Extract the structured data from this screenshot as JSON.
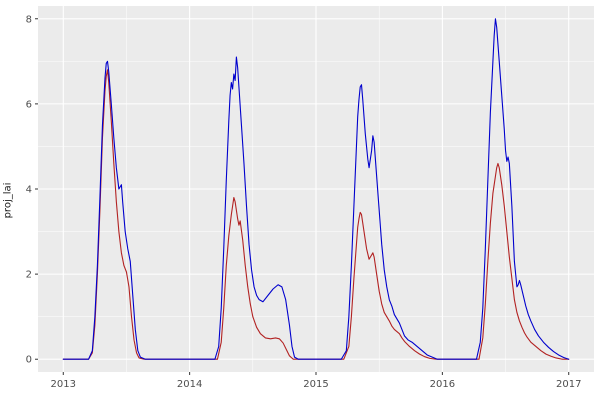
{
  "figure": {
    "background": "#FFFFFF",
    "panel_background": "#EBEBEB",
    "grid_major_color": "#FFFFFF",
    "grid_minor_color": "#FFFFFF",
    "axis_text_color": "#4D4D4D",
    "axis_title_color": "#1A1A1A",
    "tick_mark_color": "#333333"
  },
  "chart_data": {
    "type": "line",
    "title": "",
    "xlabel": "",
    "ylabel": "proj_lai",
    "grid": true,
    "legend": "none",
    "xlim": [
      2012.8,
      2017.2
    ],
    "ylim": [
      -0.3,
      8.3
    ],
    "x_ticks": [
      2013,
      2014,
      2015,
      2016,
      2017
    ],
    "x_tick_labels": [
      "2013",
      "2014",
      "2015",
      "2016",
      "2017"
    ],
    "x_minor_ticks": [
      2013.5,
      2014.5,
      2015.5,
      2016.5
    ],
    "y_ticks": [
      0,
      2,
      4,
      6,
      8
    ],
    "y_tick_labels": [
      "0",
      "2",
      "4",
      "6",
      "8"
    ],
    "y_minor_ticks": [
      1,
      3,
      5,
      7
    ],
    "series": [
      {
        "name": "red-series",
        "color": "#B22222",
        "points": [
          [
            2013.0,
            0
          ],
          [
            2013.1,
            0
          ],
          [
            2013.2,
            0
          ],
          [
            2013.23,
            0.15
          ],
          [
            2013.25,
            0.8
          ],
          [
            2013.27,
            2.0
          ],
          [
            2013.29,
            3.5
          ],
          [
            2013.31,
            5.2
          ],
          [
            2013.33,
            6.3
          ],
          [
            2013.34,
            6.65
          ],
          [
            2013.35,
            6.8
          ],
          [
            2013.36,
            6.5
          ],
          [
            2013.38,
            5.6
          ],
          [
            2013.4,
            4.6
          ],
          [
            2013.42,
            3.7
          ],
          [
            2013.44,
            3.0
          ],
          [
            2013.46,
            2.5
          ],
          [
            2013.48,
            2.2
          ],
          [
            2013.5,
            2.05
          ],
          [
            2013.52,
            1.7
          ],
          [
            2013.54,
            1.0
          ],
          [
            2013.56,
            0.45
          ],
          [
            2013.58,
            0.15
          ],
          [
            2013.6,
            0.03
          ],
          [
            2013.64,
            0
          ],
          [
            2013.8,
            0
          ],
          [
            2014.0,
            0
          ],
          [
            2014.22,
            0
          ],
          [
            2014.25,
            0.4
          ],
          [
            2014.27,
            1.2
          ],
          [
            2014.29,
            2.2
          ],
          [
            2014.31,
            2.9
          ],
          [
            2014.33,
            3.4
          ],
          [
            2014.34,
            3.6
          ],
          [
            2014.35,
            3.8
          ],
          [
            2014.36,
            3.7
          ],
          [
            2014.38,
            3.3
          ],
          [
            2014.39,
            3.15
          ],
          [
            2014.4,
            3.25
          ],
          [
            2014.42,
            2.8
          ],
          [
            2014.44,
            2.2
          ],
          [
            2014.46,
            1.7
          ],
          [
            2014.48,
            1.3
          ],
          [
            2014.5,
            1.0
          ],
          [
            2014.53,
            0.75
          ],
          [
            2014.56,
            0.6
          ],
          [
            2014.6,
            0.5
          ],
          [
            2014.64,
            0.48
          ],
          [
            2014.68,
            0.5
          ],
          [
            2014.71,
            0.48
          ],
          [
            2014.74,
            0.38
          ],
          [
            2014.77,
            0.2
          ],
          [
            2014.79,
            0.08
          ],
          [
            2014.82,
            0
          ],
          [
            2015.0,
            0
          ],
          [
            2015.22,
            0
          ],
          [
            2015.26,
            0.3
          ],
          [
            2015.28,
            1.0
          ],
          [
            2015.3,
            1.9
          ],
          [
            2015.32,
            2.7
          ],
          [
            2015.33,
            3.1
          ],
          [
            2015.34,
            3.3
          ],
          [
            2015.35,
            3.45
          ],
          [
            2015.36,
            3.4
          ],
          [
            2015.38,
            3.0
          ],
          [
            2015.4,
            2.6
          ],
          [
            2015.42,
            2.35
          ],
          [
            2015.44,
            2.45
          ],
          [
            2015.45,
            2.5
          ],
          [
            2015.46,
            2.4
          ],
          [
            2015.48,
            2.0
          ],
          [
            2015.5,
            1.6
          ],
          [
            2015.52,
            1.3
          ],
          [
            2015.54,
            1.1
          ],
          [
            2015.56,
            1.0
          ],
          [
            2015.58,
            0.9
          ],
          [
            2015.6,
            0.78
          ],
          [
            2015.62,
            0.7
          ],
          [
            2015.64,
            0.65
          ],
          [
            2015.66,
            0.6
          ],
          [
            2015.68,
            0.5
          ],
          [
            2015.7,
            0.42
          ],
          [
            2015.74,
            0.3
          ],
          [
            2015.78,
            0.2
          ],
          [
            2015.82,
            0.12
          ],
          [
            2015.86,
            0.06
          ],
          [
            2015.9,
            0.02
          ],
          [
            2015.95,
            0
          ],
          [
            2016.1,
            0
          ],
          [
            2016.29,
            0
          ],
          [
            2016.32,
            0.5
          ],
          [
            2016.34,
            1.3
          ],
          [
            2016.36,
            2.3
          ],
          [
            2016.38,
            3.2
          ],
          [
            2016.4,
            3.9
          ],
          [
            2016.42,
            4.3
          ],
          [
            2016.43,
            4.5
          ],
          [
            2016.44,
            4.6
          ],
          [
            2016.45,
            4.5
          ],
          [
            2016.47,
            4.1
          ],
          [
            2016.49,
            3.6
          ],
          [
            2016.51,
            3.0
          ],
          [
            2016.53,
            2.4
          ],
          [
            2016.55,
            1.9
          ],
          [
            2016.57,
            1.4
          ],
          [
            2016.59,
            1.1
          ],
          [
            2016.61,
            0.9
          ],
          [
            2016.63,
            0.75
          ],
          [
            2016.65,
            0.62
          ],
          [
            2016.67,
            0.52
          ],
          [
            2016.7,
            0.4
          ],
          [
            2016.74,
            0.3
          ],
          [
            2016.78,
            0.2
          ],
          [
            2016.82,
            0.12
          ],
          [
            2016.86,
            0.07
          ],
          [
            2016.9,
            0.03
          ],
          [
            2016.95,
            0
          ],
          [
            2017.0,
            0
          ]
        ]
      },
      {
        "name": "blue-series",
        "color": "#0000CD",
        "points": [
          [
            2013.0,
            0
          ],
          [
            2013.1,
            0
          ],
          [
            2013.2,
            0
          ],
          [
            2013.23,
            0.2
          ],
          [
            2013.25,
            1.0
          ],
          [
            2013.27,
            2.2
          ],
          [
            2013.29,
            3.8
          ],
          [
            2013.31,
            5.5
          ],
          [
            2013.33,
            6.6
          ],
          [
            2013.34,
            6.95
          ],
          [
            2013.35,
            7.0
          ],
          [
            2013.36,
            6.75
          ],
          [
            2013.38,
            6.0
          ],
          [
            2013.4,
            5.2
          ],
          [
            2013.42,
            4.5
          ],
          [
            2013.44,
            4.0
          ],
          [
            2013.45,
            4.05
          ],
          [
            2013.46,
            4.1
          ],
          [
            2013.47,
            3.7
          ],
          [
            2013.49,
            3.0
          ],
          [
            2013.51,
            2.6
          ],
          [
            2013.53,
            2.3
          ],
          [
            2013.55,
            1.5
          ],
          [
            2013.57,
            0.7
          ],
          [
            2013.59,
            0.2
          ],
          [
            2013.61,
            0.05
          ],
          [
            2013.65,
            0
          ],
          [
            2013.8,
            0
          ],
          [
            2014.0,
            0
          ],
          [
            2014.2,
            0
          ],
          [
            2014.23,
            0.3
          ],
          [
            2014.25,
            1.2
          ],
          [
            2014.27,
            2.6
          ],
          [
            2014.29,
            4.2
          ],
          [
            2014.31,
            5.6
          ],
          [
            2014.32,
            6.2
          ],
          [
            2014.33,
            6.5
          ],
          [
            2014.34,
            6.35
          ],
          [
            2014.35,
            6.7
          ],
          [
            2014.36,
            6.55
          ],
          [
            2014.37,
            7.1
          ],
          [
            2014.38,
            6.85
          ],
          [
            2014.39,
            6.4
          ],
          [
            2014.41,
            5.5
          ],
          [
            2014.43,
            4.6
          ],
          [
            2014.45,
            3.6
          ],
          [
            2014.47,
            2.7
          ],
          [
            2014.49,
            2.1
          ],
          [
            2014.51,
            1.7
          ],
          [
            2014.53,
            1.5
          ],
          [
            2014.55,
            1.4
          ],
          [
            2014.58,
            1.35
          ],
          [
            2014.62,
            1.5
          ],
          [
            2014.66,
            1.65
          ],
          [
            2014.7,
            1.75
          ],
          [
            2014.73,
            1.7
          ],
          [
            2014.76,
            1.4
          ],
          [
            2014.79,
            0.8
          ],
          [
            2014.81,
            0.3
          ],
          [
            2014.83,
            0.05
          ],
          [
            2014.86,
            0
          ],
          [
            2015.0,
            0
          ],
          [
            2015.2,
            0
          ],
          [
            2015.24,
            0.2
          ],
          [
            2015.26,
            1.0
          ],
          [
            2015.28,
            2.2
          ],
          [
            2015.3,
            3.6
          ],
          [
            2015.32,
            5.0
          ],
          [
            2015.33,
            5.7
          ],
          [
            2015.34,
            6.1
          ],
          [
            2015.35,
            6.4
          ],
          [
            2015.36,
            6.45
          ],
          [
            2015.37,
            6.1
          ],
          [
            2015.39,
            5.3
          ],
          [
            2015.41,
            4.7
          ],
          [
            2015.42,
            4.5
          ],
          [
            2015.44,
            4.9
          ],
          [
            2015.45,
            5.25
          ],
          [
            2015.46,
            5.1
          ],
          [
            2015.48,
            4.3
          ],
          [
            2015.5,
            3.5
          ],
          [
            2015.52,
            2.7
          ],
          [
            2015.54,
            2.1
          ],
          [
            2015.56,
            1.7
          ],
          [
            2015.58,
            1.4
          ],
          [
            2015.6,
            1.25
          ],
          [
            2015.62,
            1.05
          ],
          [
            2015.64,
            0.95
          ],
          [
            2015.66,
            0.85
          ],
          [
            2015.68,
            0.7
          ],
          [
            2015.7,
            0.55
          ],
          [
            2015.73,
            0.45
          ],
          [
            2015.76,
            0.4
          ],
          [
            2015.8,
            0.3
          ],
          [
            2015.84,
            0.2
          ],
          [
            2015.88,
            0.1
          ],
          [
            2015.92,
            0.05
          ],
          [
            2015.96,
            0
          ],
          [
            2016.1,
            0
          ],
          [
            2016.27,
            0
          ],
          [
            2016.3,
            0.4
          ],
          [
            2016.32,
            1.2
          ],
          [
            2016.34,
            2.6
          ],
          [
            2016.36,
            4.2
          ],
          [
            2016.38,
            5.8
          ],
          [
            2016.4,
            7.0
          ],
          [
            2016.41,
            7.6
          ],
          [
            2016.42,
            8.0
          ],
          [
            2016.43,
            7.8
          ],
          [
            2016.45,
            7.0
          ],
          [
            2016.47,
            6.2
          ],
          [
            2016.49,
            5.4
          ],
          [
            2016.5,
            4.9
          ],
          [
            2016.51,
            4.65
          ],
          [
            2016.52,
            4.75
          ],
          [
            2016.53,
            4.6
          ],
          [
            2016.55,
            3.6
          ],
          [
            2016.57,
            2.3
          ],
          [
            2016.59,
            1.7
          ],
          [
            2016.6,
            1.75
          ],
          [
            2016.61,
            1.85
          ],
          [
            2016.62,
            1.75
          ],
          [
            2016.64,
            1.5
          ],
          [
            2016.66,
            1.25
          ],
          [
            2016.68,
            1.05
          ],
          [
            2016.7,
            0.9
          ],
          [
            2016.73,
            0.7
          ],
          [
            2016.76,
            0.55
          ],
          [
            2016.8,
            0.4
          ],
          [
            2016.84,
            0.28
          ],
          [
            2016.88,
            0.18
          ],
          [
            2016.92,
            0.1
          ],
          [
            2016.96,
            0.04
          ],
          [
            2017.0,
            0
          ]
        ]
      }
    ]
  }
}
